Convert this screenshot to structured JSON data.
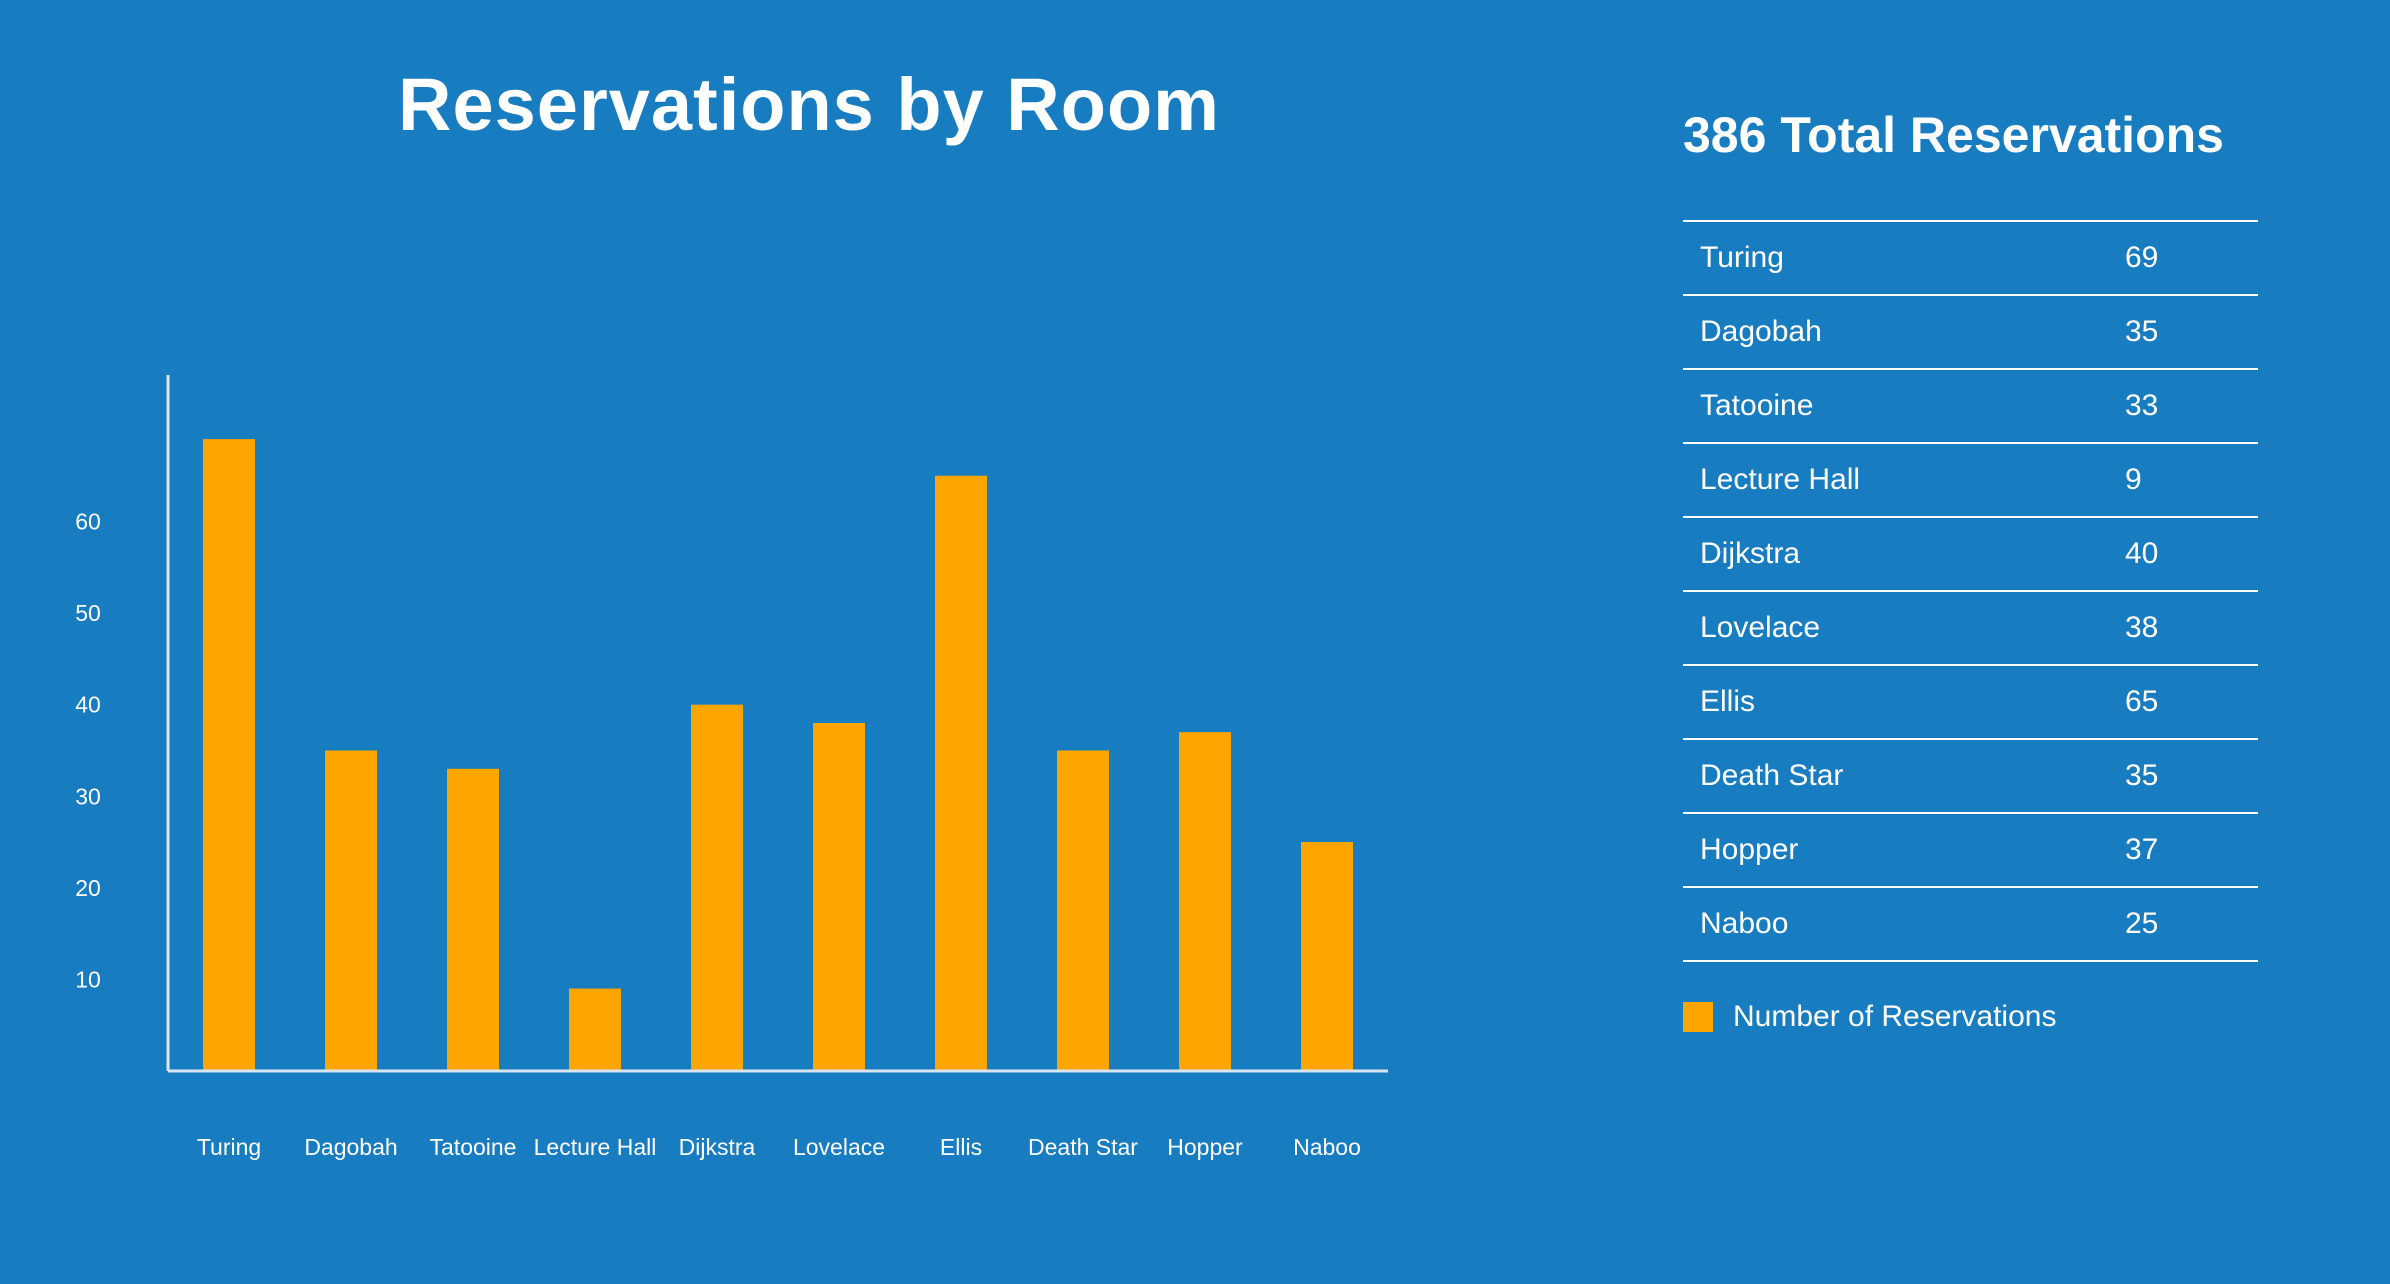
{
  "colors": {
    "background": "#187cc1",
    "bar": "#ffa500",
    "text": "#ffffff",
    "axis": "#d8e6f3"
  },
  "chart_data": {
    "type": "bar",
    "title": "Reservations by Room",
    "categories": [
      "Turing",
      "Dagobah",
      "Tatooine",
      "Lecture Hall",
      "Dijkstra",
      "Lovelace",
      "Ellis",
      "Death Star",
      "Hopper",
      "Naboo"
    ],
    "series": [
      {
        "name": "Number of Reservations",
        "values": [
          69,
          35,
          33,
          9,
          40,
          38,
          65,
          35,
          37,
          25
        ]
      }
    ],
    "yticks": [
      10,
      20,
      30,
      40,
      50,
      60
    ],
    "ylim": [
      0,
      76
    ],
    "xlabel": "",
    "ylabel": "",
    "grid": false,
    "legend": "right"
  },
  "summary": {
    "total_label": "386 Total Reservations",
    "rows": [
      {
        "name": "Turing",
        "count": "69"
      },
      {
        "name": "Dagobah",
        "count": "35"
      },
      {
        "name": "Tatooine",
        "count": "33"
      },
      {
        "name": "Lecture Hall",
        "count": "9"
      },
      {
        "name": "Dijkstra",
        "count": "40"
      },
      {
        "name": "Lovelace",
        "count": "38"
      },
      {
        "name": "Ellis",
        "count": "65"
      },
      {
        "name": "Death Star",
        "count": "35"
      },
      {
        "name": "Hopper",
        "count": "37"
      },
      {
        "name": "Naboo",
        "count": "25"
      }
    ],
    "legend_label": "Number of Reservations"
  }
}
